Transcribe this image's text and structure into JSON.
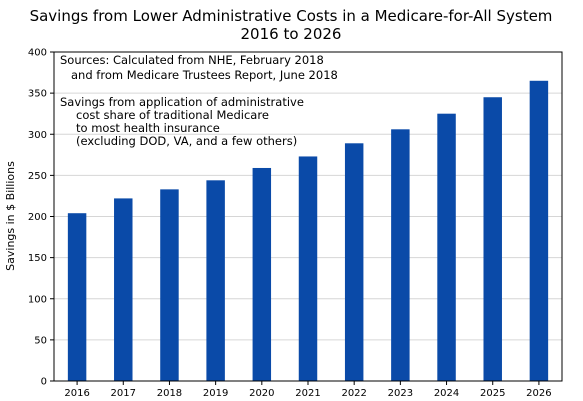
{
  "chart_data": {
    "type": "bar",
    "title": "Savings from Lower Administrative Costs in a Medicare-for-All System",
    "subtitle": "2016 to 2026",
    "xlabel": "",
    "ylabel": "Savings in $ Billions",
    "categories": [
      "2016",
      "2017",
      "2018",
      "2019",
      "2020",
      "2021",
      "2022",
      "2023",
      "2024",
      "2025",
      "2026"
    ],
    "values": [
      204,
      222,
      233,
      244,
      259,
      273,
      289,
      306,
      325,
      345,
      365
    ],
    "ylim": [
      0,
      400
    ],
    "yticks": [
      0,
      50,
      100,
      150,
      200,
      250,
      300,
      350,
      400
    ],
    "grid": "horizontal",
    "bar_color": "#0a4aa8",
    "grid_color": "#d6d6d6",
    "annotations": {
      "sources": [
        "Sources:  Calculated from NHE, February 2018",
        "and from Medicare Trustees Report, June 2018"
      ],
      "note": [
        "Savings from application of administrative",
        "cost share of traditional Medicare",
        "to most health insurance",
        "(excluding DOD, VA, and a few others)"
      ]
    }
  }
}
